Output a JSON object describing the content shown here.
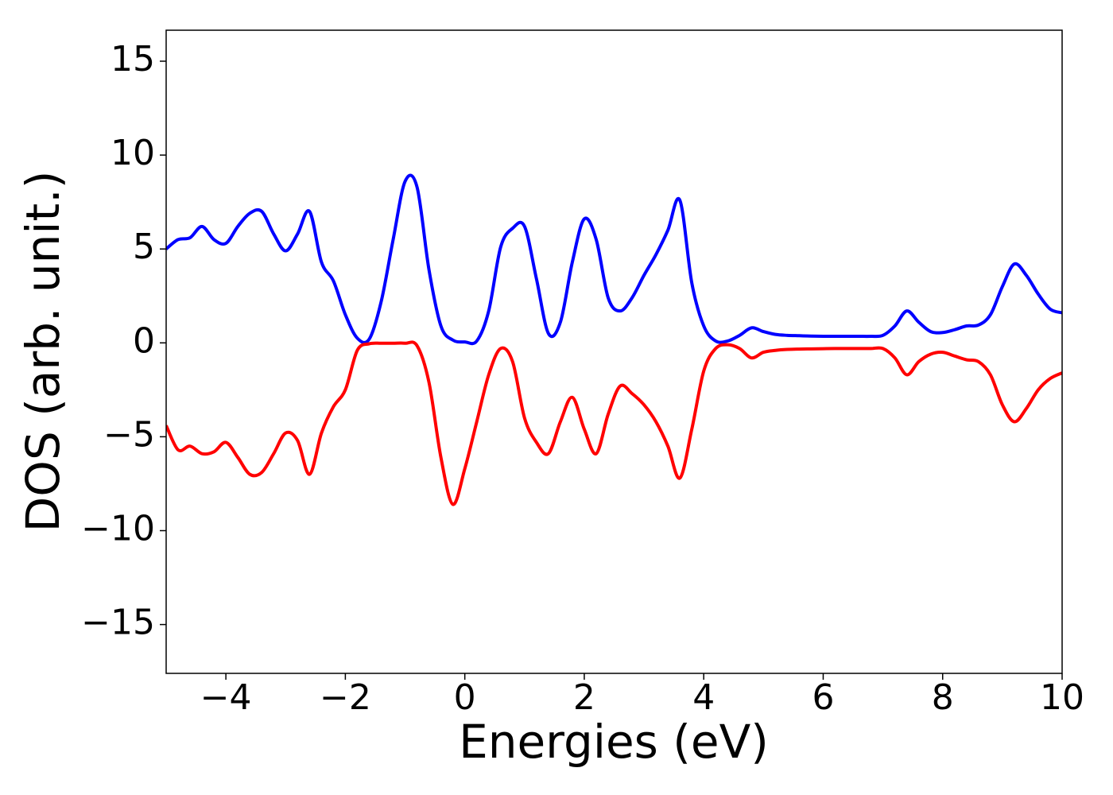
{
  "chart_data": {
    "type": "line",
    "xlabel": "Energies (eV)",
    "ylabel": "DOS (arb. unit.)",
    "x": [
      -5,
      -4.8,
      -4.6,
      -4.4,
      -4.2,
      -4,
      -3.8,
      -3.6,
      -3.4,
      -3.2,
      -3,
      -2.8,
      -2.6,
      -2.4,
      -2.2,
      -2,
      -1.8,
      -1.6,
      -1.4,
      -1.2,
      -1,
      -0.8,
      -0.6,
      -0.4,
      -0.2,
      0,
      0.2,
      0.4,
      0.6,
      0.8,
      1,
      1.2,
      1.4,
      1.6,
      1.8,
      2,
      2.2,
      2.4,
      2.6,
      2.8,
      3,
      3.2,
      3.4,
      3.6,
      3.8,
      4,
      4.2,
      4.4,
      4.6,
      4.8,
      5,
      5.2,
      5.4,
      5.6,
      5.8,
      6,
      6.2,
      6.4,
      6.6,
      6.8,
      7,
      7.2,
      7.4,
      7.6,
      7.8,
      8,
      8.2,
      8.4,
      8.6,
      8.8,
      9,
      9.2,
      9.4,
      9.6,
      9.8,
      10
    ],
    "series": [
      {
        "color": "#0000ff",
        "values": [
          5.0,
          5.5,
          5.6,
          6.2,
          5.5,
          5.3,
          6.2,
          6.9,
          7.0,
          5.8,
          4.9,
          5.8,
          7.0,
          4.3,
          3.3,
          1.5,
          0.25,
          0.2,
          2.2,
          5.5,
          8.6,
          8.3,
          3.9,
          0.9,
          0.15,
          0.05,
          0.1,
          1.7,
          5.1,
          6.1,
          6.2,
          3.4,
          0.5,
          1.1,
          4.3,
          6.6,
          5.5,
          2.4,
          1.7,
          2.4,
          3.6,
          4.7,
          6.0,
          7.6,
          3.2,
          0.9,
          0.1,
          0.1,
          0.4,
          0.8,
          0.6,
          0.45,
          0.4,
          0.38,
          0.36,
          0.35,
          0.35,
          0.35,
          0.35,
          0.35,
          0.4,
          0.9,
          1.7,
          1.1,
          0.6,
          0.55,
          0.7,
          0.9,
          0.95,
          1.5,
          3.0,
          4.2,
          3.6,
          2.6,
          1.8,
          1.6
        ]
      },
      {
        "color": "#ff0000",
        "values": [
          -4.4,
          -5.7,
          -5.5,
          -5.9,
          -5.8,
          -5.3,
          -6.1,
          -7.0,
          -6.9,
          -5.9,
          -4.8,
          -5.2,
          -7.0,
          -4.8,
          -3.4,
          -2.5,
          -0.4,
          -0.05,
          -0.02,
          -0.02,
          -0.02,
          -0.15,
          -2.1,
          -6.1,
          -8.6,
          -6.7,
          -4.2,
          -1.7,
          -0.3,
          -1.0,
          -4.0,
          -5.3,
          -5.9,
          -4.2,
          -2.9,
          -4.6,
          -5.9,
          -3.8,
          -2.3,
          -2.7,
          -3.3,
          -4.2,
          -5.5,
          -7.2,
          -4.6,
          -1.5,
          -0.3,
          -0.1,
          -0.3,
          -0.8,
          -0.5,
          -0.4,
          -0.35,
          -0.33,
          -0.32,
          -0.31,
          -0.3,
          -0.3,
          -0.3,
          -0.3,
          -0.3,
          -0.8,
          -1.7,
          -1.0,
          -0.6,
          -0.5,
          -0.7,
          -0.9,
          -1.0,
          -1.7,
          -3.3,
          -4.2,
          -3.5,
          -2.5,
          -1.9,
          -1.6
        ]
      }
    ],
    "xlim": [
      -5,
      10
    ],
    "xticks": [
      {
        "value": -4,
        "label": "−4"
      },
      {
        "value": -2,
        "label": "−2"
      },
      0,
      2,
      4,
      6,
      8,
      10
    ],
    "ylim": [
      -17.6,
      16.65
    ],
    "yticks": [
      {
        "value": -15,
        "label": "−15"
      },
      {
        "value": -10,
        "label": "−10"
      },
      {
        "value": -5,
        "label": "−5"
      },
      0,
      5,
      10,
      15
    ],
    "grid": false
  }
}
